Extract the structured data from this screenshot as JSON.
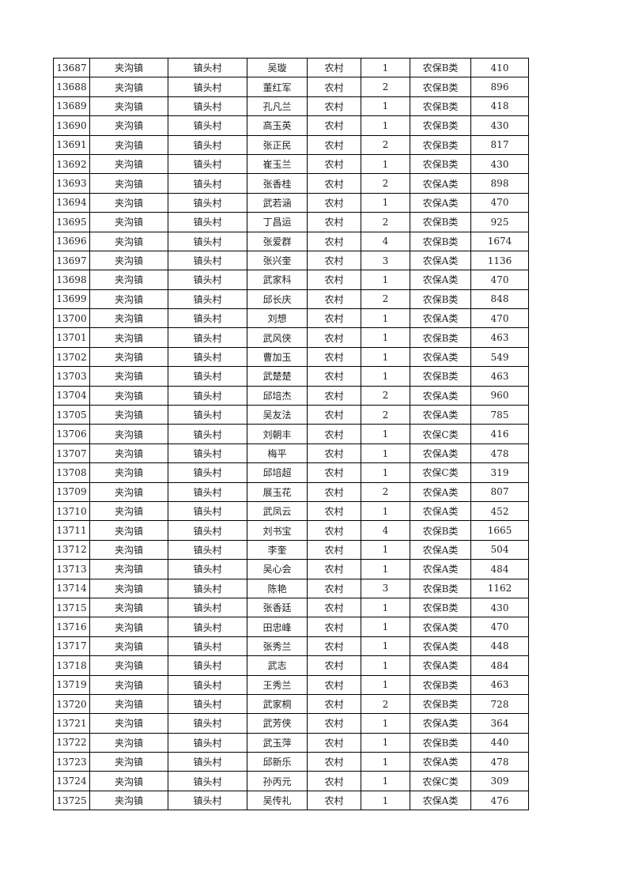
{
  "table": {
    "rows": [
      [
        "13687",
        "夹沟镇",
        "镇头村",
        "吴璇",
        "农村",
        "1",
        "农保B类",
        "410"
      ],
      [
        "13688",
        "夹沟镇",
        "镇头村",
        "董红军",
        "农村",
        "2",
        "农保B类",
        "896"
      ],
      [
        "13689",
        "夹沟镇",
        "镇头村",
        "孔凡兰",
        "农村",
        "1",
        "农保B类",
        "418"
      ],
      [
        "13690",
        "夹沟镇",
        "镇头村",
        "高玉英",
        "农村",
        "1",
        "农保B类",
        "430"
      ],
      [
        "13691",
        "夹沟镇",
        "镇头村",
        "张正民",
        "农村",
        "2",
        "农保B类",
        "817"
      ],
      [
        "13692",
        "夹沟镇",
        "镇头村",
        "崔玉兰",
        "农村",
        "1",
        "农保B类",
        "430"
      ],
      [
        "13693",
        "夹沟镇",
        "镇头村",
        "张香桂",
        "农村",
        "2",
        "农保A类",
        "898"
      ],
      [
        "13694",
        "夹沟镇",
        "镇头村",
        "武若涵",
        "农村",
        "1",
        "农保A类",
        "470"
      ],
      [
        "13695",
        "夹沟镇",
        "镇头村",
        "丁昌运",
        "农村",
        "2",
        "农保B类",
        "925"
      ],
      [
        "13696",
        "夹沟镇",
        "镇头村",
        "张爱群",
        "农村",
        "4",
        "农保B类",
        "1674"
      ],
      [
        "13697",
        "夹沟镇",
        "镇头村",
        "张兴奎",
        "农村",
        "3",
        "农保A类",
        "1136"
      ],
      [
        "13698",
        "夹沟镇",
        "镇头村",
        "武家科",
        "农村",
        "1",
        "农保A类",
        "470"
      ],
      [
        "13699",
        "夹沟镇",
        "镇头村",
        "邱长庆",
        "农村",
        "2",
        "农保B类",
        "848"
      ],
      [
        "13700",
        "夹沟镇",
        "镇头村",
        "刘想",
        "农村",
        "1",
        "农保A类",
        "470"
      ],
      [
        "13701",
        "夹沟镇",
        "镇头村",
        "武风侠",
        "农村",
        "1",
        "农保B类",
        "463"
      ],
      [
        "13702",
        "夹沟镇",
        "镇头村",
        "曹加玉",
        "农村",
        "1",
        "农保A类",
        "549"
      ],
      [
        "13703",
        "夹沟镇",
        "镇头村",
        "武楚楚",
        "农村",
        "1",
        "农保B类",
        "463"
      ],
      [
        "13704",
        "夹沟镇",
        "镇头村",
        "邱培杰",
        "农村",
        "2",
        "农保A类",
        "960"
      ],
      [
        "13705",
        "夹沟镇",
        "镇头村",
        "吴友法",
        "农村",
        "2",
        "农保A类",
        "785"
      ],
      [
        "13706",
        "夹沟镇",
        "镇头村",
        "刘朝丰",
        "农村",
        "1",
        "农保C类",
        "416"
      ],
      [
        "13707",
        "夹沟镇",
        "镇头村",
        "梅平",
        "农村",
        "1",
        "农保A类",
        "478"
      ],
      [
        "13708",
        "夹沟镇",
        "镇头村",
        "邱培超",
        "农村",
        "1",
        "农保C类",
        "319"
      ],
      [
        "13709",
        "夹沟镇",
        "镇头村",
        "展玉花",
        "农村",
        "2",
        "农保A类",
        "807"
      ],
      [
        "13710",
        "夹沟镇",
        "镇头村",
        "武凤云",
        "农村",
        "1",
        "农保A类",
        "452"
      ],
      [
        "13711",
        "夹沟镇",
        "镇头村",
        "刘书宝",
        "农村",
        "4",
        "农保B类",
        "1665"
      ],
      [
        "13712",
        "夹沟镇",
        "镇头村",
        "李奎",
        "农村",
        "1",
        "农保A类",
        "504"
      ],
      [
        "13713",
        "夹沟镇",
        "镇头村",
        "吴心会",
        "农村",
        "1",
        "农保A类",
        "484"
      ],
      [
        "13714",
        "夹沟镇",
        "镇头村",
        "陈艳",
        "农村",
        "3",
        "农保B类",
        "1162"
      ],
      [
        "13715",
        "夹沟镇",
        "镇头村",
        "张香廷",
        "农村",
        "1",
        "农保B类",
        "430"
      ],
      [
        "13716",
        "夹沟镇",
        "镇头村",
        "田忠峰",
        "农村",
        "1",
        "农保A类",
        "470"
      ],
      [
        "13717",
        "夹沟镇",
        "镇头村",
        "张秀兰",
        "农村",
        "1",
        "农保A类",
        "448"
      ],
      [
        "13718",
        "夹沟镇",
        "镇头村",
        "武志",
        "农村",
        "1",
        "农保A类",
        "484"
      ],
      [
        "13719",
        "夹沟镇",
        "镇头村",
        "王秀兰",
        "农村",
        "1",
        "农保B类",
        "463"
      ],
      [
        "13720",
        "夹沟镇",
        "镇头村",
        "武家桐",
        "农村",
        "2",
        "农保B类",
        "728"
      ],
      [
        "13721",
        "夹沟镇",
        "镇头村",
        "武芳侠",
        "农村",
        "1",
        "农保A类",
        "364"
      ],
      [
        "13722",
        "夹沟镇",
        "镇头村",
        "武玉萍",
        "农村",
        "1",
        "农保B类",
        "440"
      ],
      [
        "13723",
        "夹沟镇",
        "镇头村",
        "邱新乐",
        "农村",
        "1",
        "农保A类",
        "478"
      ],
      [
        "13724",
        "夹沟镇",
        "镇头村",
        "孙丙元",
        "农村",
        "1",
        "农保C类",
        "309"
      ],
      [
        "13725",
        "夹沟镇",
        "镇头村",
        "吴传礼",
        "农村",
        "1",
        "农保A类",
        "476"
      ]
    ]
  }
}
